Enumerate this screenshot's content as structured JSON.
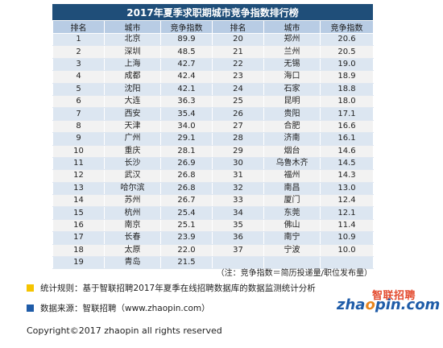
{
  "title": "2017年夏季求职期城市竞争指数排行榜",
  "columns": [
    "排名",
    "城市",
    "竞争指数",
    "排名",
    "城市",
    "竞争指数"
  ],
  "left_rows": [
    [
      "1",
      "北京",
      "89.9"
    ],
    [
      "2",
      "深圳",
      "48.5"
    ],
    [
      "3",
      "上海",
      "42.7"
    ],
    [
      "4",
      "成都",
      "42.4"
    ],
    [
      "5",
      "沈阳",
      "42.1"
    ],
    [
      "6",
      "大连",
      "36.3"
    ],
    [
      "7",
      "西安",
      "35.4"
    ],
    [
      "8",
      "天津",
      "34.0"
    ],
    [
      "9",
      "广州",
      "29.1"
    ],
    [
      "10",
      "重庆",
      "28.1"
    ],
    [
      "11",
      "长沙",
      "26.9"
    ],
    [
      "12",
      "武汉",
      "26.8"
    ],
    [
      "13",
      "哈尔滨",
      "26.8"
    ],
    [
      "14",
      "苏州",
      "26.7"
    ],
    [
      "15",
      "杭州",
      "25.4"
    ],
    [
      "16",
      "南京",
      "25.1"
    ],
    [
      "17",
      "长春",
      "23.9"
    ],
    [
      "18",
      "太原",
      "22.0"
    ],
    [
      "19",
      "青岛",
      "21.5"
    ]
  ],
  "right_rows": [
    [
      "20",
      "郑州",
      "20.6"
    ],
    [
      "21",
      "兰州",
      "20.5"
    ],
    [
      "22",
      "无锡",
      "19.0"
    ],
    [
      "23",
      "海口",
      "18.9"
    ],
    [
      "24",
      "石家",
      "18.8"
    ],
    [
      "25",
      "昆明",
      "18.0"
    ],
    [
      "26",
      "贵阳",
      "17.1"
    ],
    [
      "27",
      "合肥",
      "16.6"
    ],
    [
      "28",
      "济南",
      "16.1"
    ],
    [
      "29",
      "烟台",
      "14.6"
    ],
    [
      "30",
      "乌鲁木齐",
      "14.5"
    ],
    [
      "31",
      "福州",
      "14.3"
    ],
    [
      "32",
      "南昌",
      "13.0"
    ],
    [
      "33",
      "厦门",
      "12.4"
    ],
    [
      "34",
      "东莞",
      "12.1"
    ],
    [
      "35",
      "佛山",
      "11.4"
    ],
    [
      "36",
      "南宁",
      "10.9"
    ],
    [
      "37",
      "宁波",
      "10.0"
    ],
    [
      "",
      "",
      ""
    ]
  ],
  "note": "（注：竞争指数＝简历投递量/职位发布量）",
  "legend": [
    {
      "text": "统计规则：基于智联招聘2017年夏季在线招聘数据库的数据监测统计分析",
      "color": "#f5c400"
    },
    {
      "text": "数据来源：智联招聘（www.zhaopin.com）",
      "color": "#1f5ca8"
    }
  ],
  "logo": {
    "brand": "智联招聘",
    "url_pre": "zha",
    "url_o": "o",
    "url_post": "pin.com"
  },
  "copyright": "Copyright©2017 zhaopin all rights reserved",
  "colors": {
    "title_bg": "#1f4e79",
    "header_bg": "#b8cce4",
    "row_even": "#dce6f1",
    "row_odd": "#f2f2f2"
  }
}
